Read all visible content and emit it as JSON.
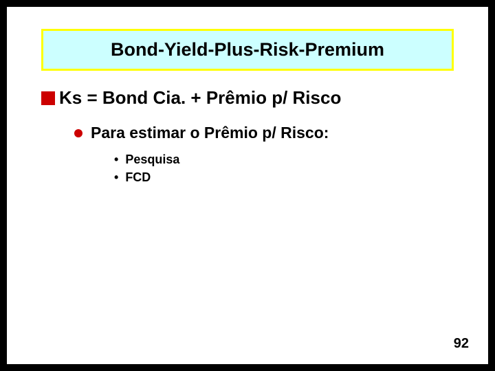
{
  "title": "Bond-Yield-Plus-Risk-Premium",
  "main_point": "Ks = Bond Cia. + Prêmio p/ Risco",
  "sub_point": "Para estimar o Prêmio p/ Risco:",
  "items": [
    "Pesquisa",
    "FCD"
  ],
  "page_number": "92",
  "colors": {
    "title_bg": "#ccffff",
    "title_border": "#ffff00",
    "bullet": "#cc0000",
    "slide_bg": "#ffffff",
    "outer_bg": "#000000",
    "text": "#000000"
  },
  "fonts": {
    "title_size": 27,
    "main_size": 26,
    "sub_size": 23,
    "item_size": 18,
    "page_size": 20,
    "weight": "bold",
    "family": "Arial"
  }
}
